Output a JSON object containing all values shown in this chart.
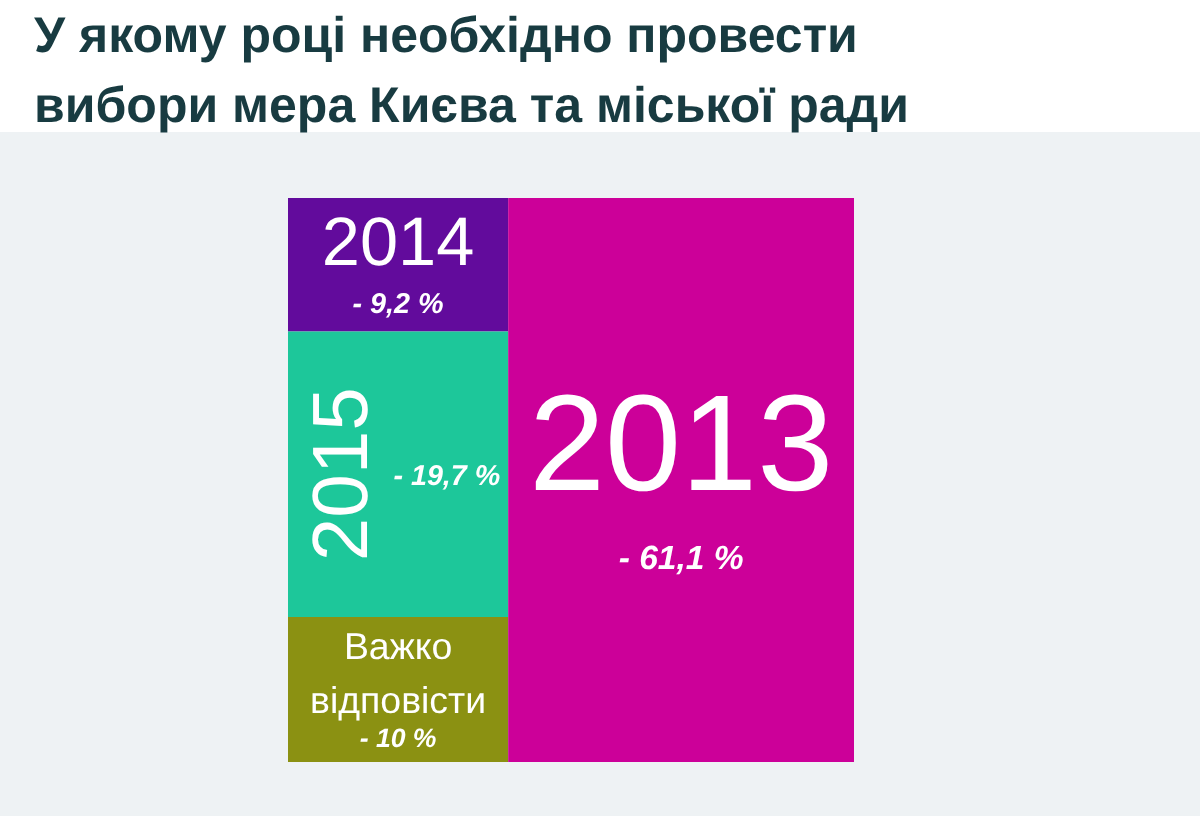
{
  "chart_data": {
    "type": "other",
    "title": "У якому році необхідно провести вибори мера Києва та міської ради",
    "categories": [
      "2014",
      "2015",
      "Важко відповісти",
      "2013"
    ],
    "values": [
      9.2,
      19.7,
      10,
      61.1
    ],
    "colors": [
      "#620b9c",
      "#1dc79a",
      "#8b9112",
      "#cc0099"
    ],
    "value_labels": [
      "9,2 %",
      "19,7 %",
      "10 %",
      "61,1 %"
    ],
    "annotations": [
      "-",
      "-",
      "-",
      "-"
    ]
  }
}
